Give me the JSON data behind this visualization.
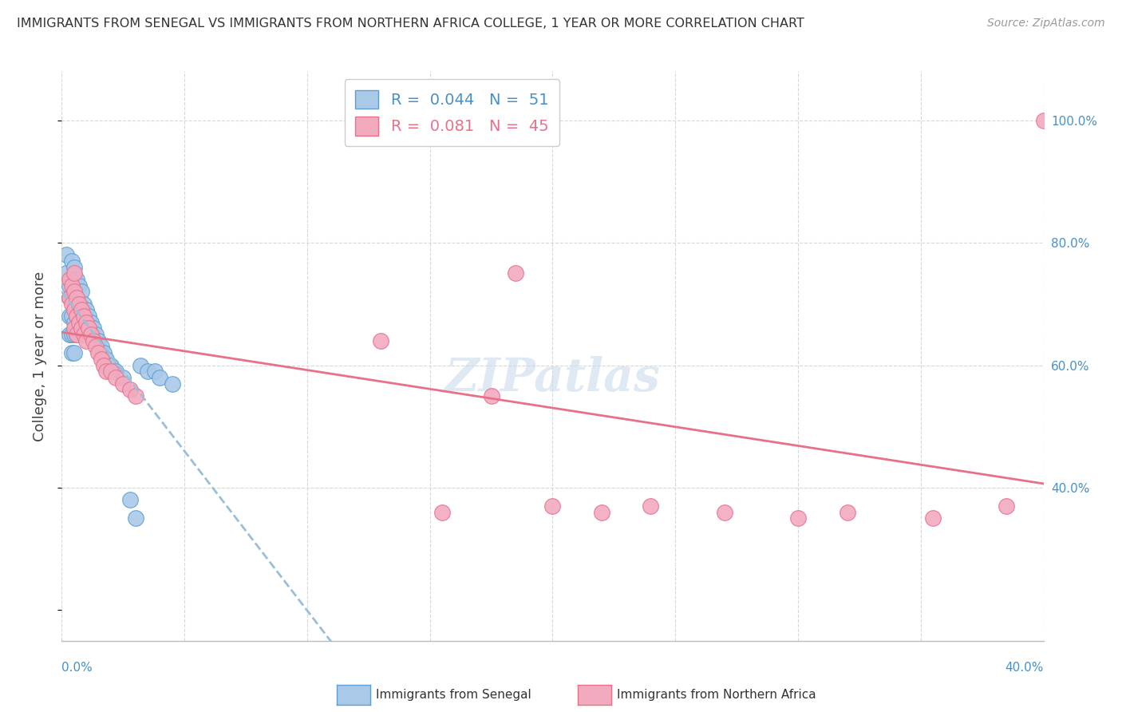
{
  "title": "IMMIGRANTS FROM SENEGAL VS IMMIGRANTS FROM NORTHERN AFRICA COLLEGE, 1 YEAR OR MORE CORRELATION CHART",
  "source": "Source: ZipAtlas.com",
  "ylabel": "College, 1 year or more",
  "ylabel_right_values": [
    0.4,
    0.6,
    0.8,
    1.0
  ],
  "xlim": [
    0.0,
    0.4
  ],
  "ylim": [
    0.15,
    1.08
  ],
  "R_senegal": 0.044,
  "N_senegal": 51,
  "R_northern": 0.081,
  "N_northern": 45,
  "color_senegal_fill": "#aac9e8",
  "color_northern_fill": "#f2aabf",
  "color_senegal_edge": "#5b9fd4",
  "color_northern_edge": "#e8718a",
  "color_senegal_line": "#9abfd8",
  "color_northern_line": "#e8718a",
  "senegal_x": [
    0.002,
    0.002,
    0.003,
    0.003,
    0.003,
    0.003,
    0.004,
    0.004,
    0.004,
    0.004,
    0.004,
    0.004,
    0.005,
    0.005,
    0.005,
    0.005,
    0.005,
    0.005,
    0.006,
    0.006,
    0.006,
    0.006,
    0.007,
    0.007,
    0.007,
    0.008,
    0.008,
    0.008,
    0.009,
    0.009,
    0.01,
    0.01,
    0.011,
    0.012,
    0.013,
    0.014,
    0.015,
    0.016,
    0.017,
    0.018,
    0.019,
    0.02,
    0.022,
    0.025,
    0.028,
    0.03,
    0.032,
    0.035,
    0.038,
    0.04,
    0.045
  ],
  "senegal_y": [
    0.78,
    0.75,
    0.73,
    0.71,
    0.68,
    0.65,
    0.77,
    0.74,
    0.71,
    0.68,
    0.65,
    0.62,
    0.76,
    0.73,
    0.7,
    0.67,
    0.65,
    0.62,
    0.74,
    0.71,
    0.68,
    0.65,
    0.73,
    0.7,
    0.67,
    0.72,
    0.69,
    0.66,
    0.7,
    0.67,
    0.69,
    0.66,
    0.68,
    0.67,
    0.66,
    0.65,
    0.64,
    0.63,
    0.62,
    0.61,
    0.6,
    0.6,
    0.59,
    0.58,
    0.38,
    0.35,
    0.6,
    0.59,
    0.59,
    0.58,
    0.57
  ],
  "northern_x": [
    0.003,
    0.003,
    0.004,
    0.004,
    0.005,
    0.005,
    0.005,
    0.005,
    0.006,
    0.006,
    0.006,
    0.007,
    0.007,
    0.008,
    0.008,
    0.009,
    0.009,
    0.01,
    0.01,
    0.011,
    0.012,
    0.013,
    0.014,
    0.015,
    0.016,
    0.017,
    0.018,
    0.02,
    0.022,
    0.025,
    0.028,
    0.03,
    0.13,
    0.155,
    0.175,
    0.185,
    0.2,
    0.22,
    0.24,
    0.27,
    0.3,
    0.32,
    0.355,
    0.385,
    0.4
  ],
  "northern_y": [
    0.74,
    0.71,
    0.73,
    0.7,
    0.75,
    0.72,
    0.69,
    0.66,
    0.71,
    0.68,
    0.65,
    0.7,
    0.67,
    0.69,
    0.66,
    0.68,
    0.65,
    0.67,
    0.64,
    0.66,
    0.65,
    0.64,
    0.63,
    0.62,
    0.61,
    0.6,
    0.59,
    0.59,
    0.58,
    0.57,
    0.56,
    0.55,
    0.64,
    0.36,
    0.55,
    0.75,
    0.37,
    0.36,
    0.37,
    0.36,
    0.35,
    0.36,
    0.35,
    0.37,
    1.0
  ],
  "watermark": "ZIPatlas",
  "background_color": "#ffffff",
  "grid_color": "#d8d8d8"
}
